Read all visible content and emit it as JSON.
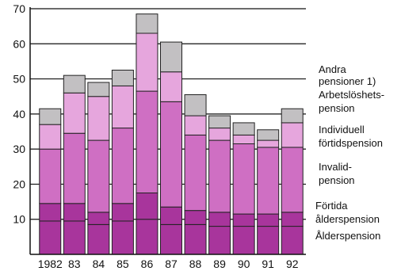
{
  "chart_data": {
    "type": "bar",
    "stacked": true,
    "categories": [
      "1982",
      "83",
      "84",
      "85",
      "86",
      "87",
      "88",
      "89",
      "90",
      "91",
      "92"
    ],
    "ylim": [
      0,
      70
    ],
    "yticks": [
      10,
      20,
      30,
      40,
      50,
      60,
      70
    ],
    "grid": "horizontal",
    "legend_position": "right",
    "series": [
      {
        "name": "Ålderspension",
        "color": "#a8359c",
        "values": [
          9.5,
          9.5,
          8.5,
          9.5,
          10,
          8.5,
          8.5,
          8,
          8,
          8,
          8
        ]
      },
      {
        "name": "Förtida ålderspension",
        "color": "#a8359c",
        "values": [
          5,
          5,
          3.5,
          5,
          7.5,
          5,
          4,
          4,
          3.5,
          3.5,
          4
        ]
      },
      {
        "name": "Invalid-pension",
        "color": "#cf6fc3",
        "values": [
          15.5,
          20,
          20.5,
          21.5,
          29,
          30,
          21.5,
          20.5,
          20,
          19,
          18.5
        ]
      },
      {
        "name": "Individuell förtidspension",
        "color": "#e6a6dd",
        "values": [
          7,
          11.5,
          12.5,
          12,
          16.5,
          8.5,
          5.5,
          3.5,
          2.5,
          2,
          7
        ]
      },
      {
        "name": "Arbetslöshets-pension",
        "color": "#f7def3",
        "values": [
          0,
          0,
          0,
          0,
          0,
          0,
          0,
          0,
          0,
          0,
          0
        ]
      },
      {
        "name": "Andra pensioner 1)",
        "color": "#c2c0c2",
        "values": [
          4.5,
          5,
          4,
          4.5,
          5.5,
          8.5,
          6,
          3.5,
          3.5,
          3,
          4
        ]
      }
    ],
    "legend": [
      "Andra",
      "pensioner 1)",
      "Arbetslöshets-",
      "pension",
      "Individuell",
      "förtidspension",
      "Invalid-",
      "pension",
      "Förtida",
      "ålderspension",
      "Ålderspension"
    ]
  }
}
